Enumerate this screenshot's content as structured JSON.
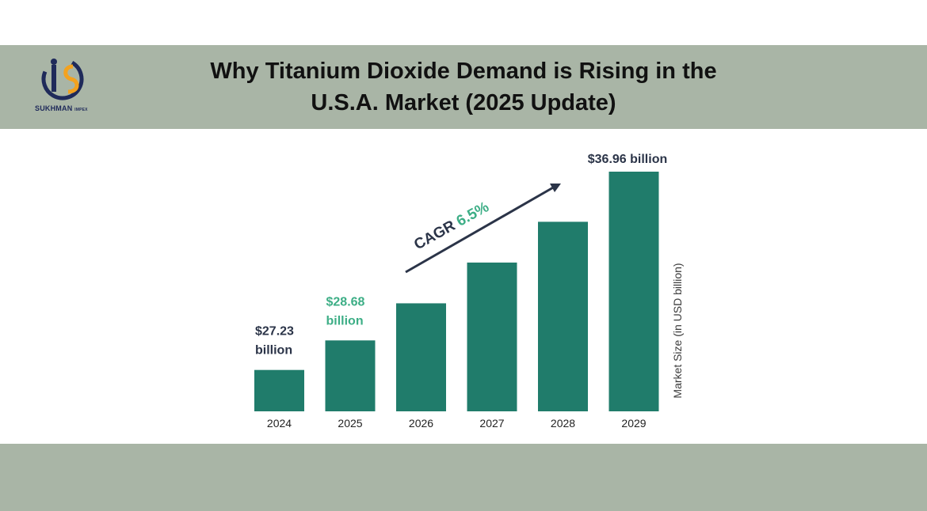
{
  "colors": {
    "band": "#a9b5a6",
    "bar": "#207c6b",
    "text_dark": "#2b3448",
    "accent_green": "#3dae86"
  },
  "header": {
    "title_line1": "Why Titanium Dioxide Demand is Rising in the",
    "title_line2": "U.S.A. Market (2025 Update)",
    "logo_text": "SUKHMAN",
    "logo_subtext": "IMPEX"
  },
  "chart_data": {
    "type": "bar",
    "categories": [
      "2024",
      "2025",
      "2026",
      "2027",
      "2028",
      "2029"
    ],
    "values": [
      27.23,
      28.68,
      30.5,
      32.5,
      34.5,
      36.96
    ],
    "ylabel": "Market Size (in USD billion)",
    "ylim": [
      25.2,
      36.96
    ],
    "grid": false,
    "data_labels": [
      {
        "index": 0,
        "line1": "$27.23",
        "line2": "billion",
        "color": "#2b3448"
      },
      {
        "index": 1,
        "line1": "$28.68",
        "line2": "billion",
        "color": "#3dae86"
      },
      {
        "index": 5,
        "line1": "$36.96 billion",
        "line2": "",
        "color": "#2b3448"
      }
    ],
    "annotation": {
      "label": "CAGR",
      "value": "6.5%"
    }
  }
}
